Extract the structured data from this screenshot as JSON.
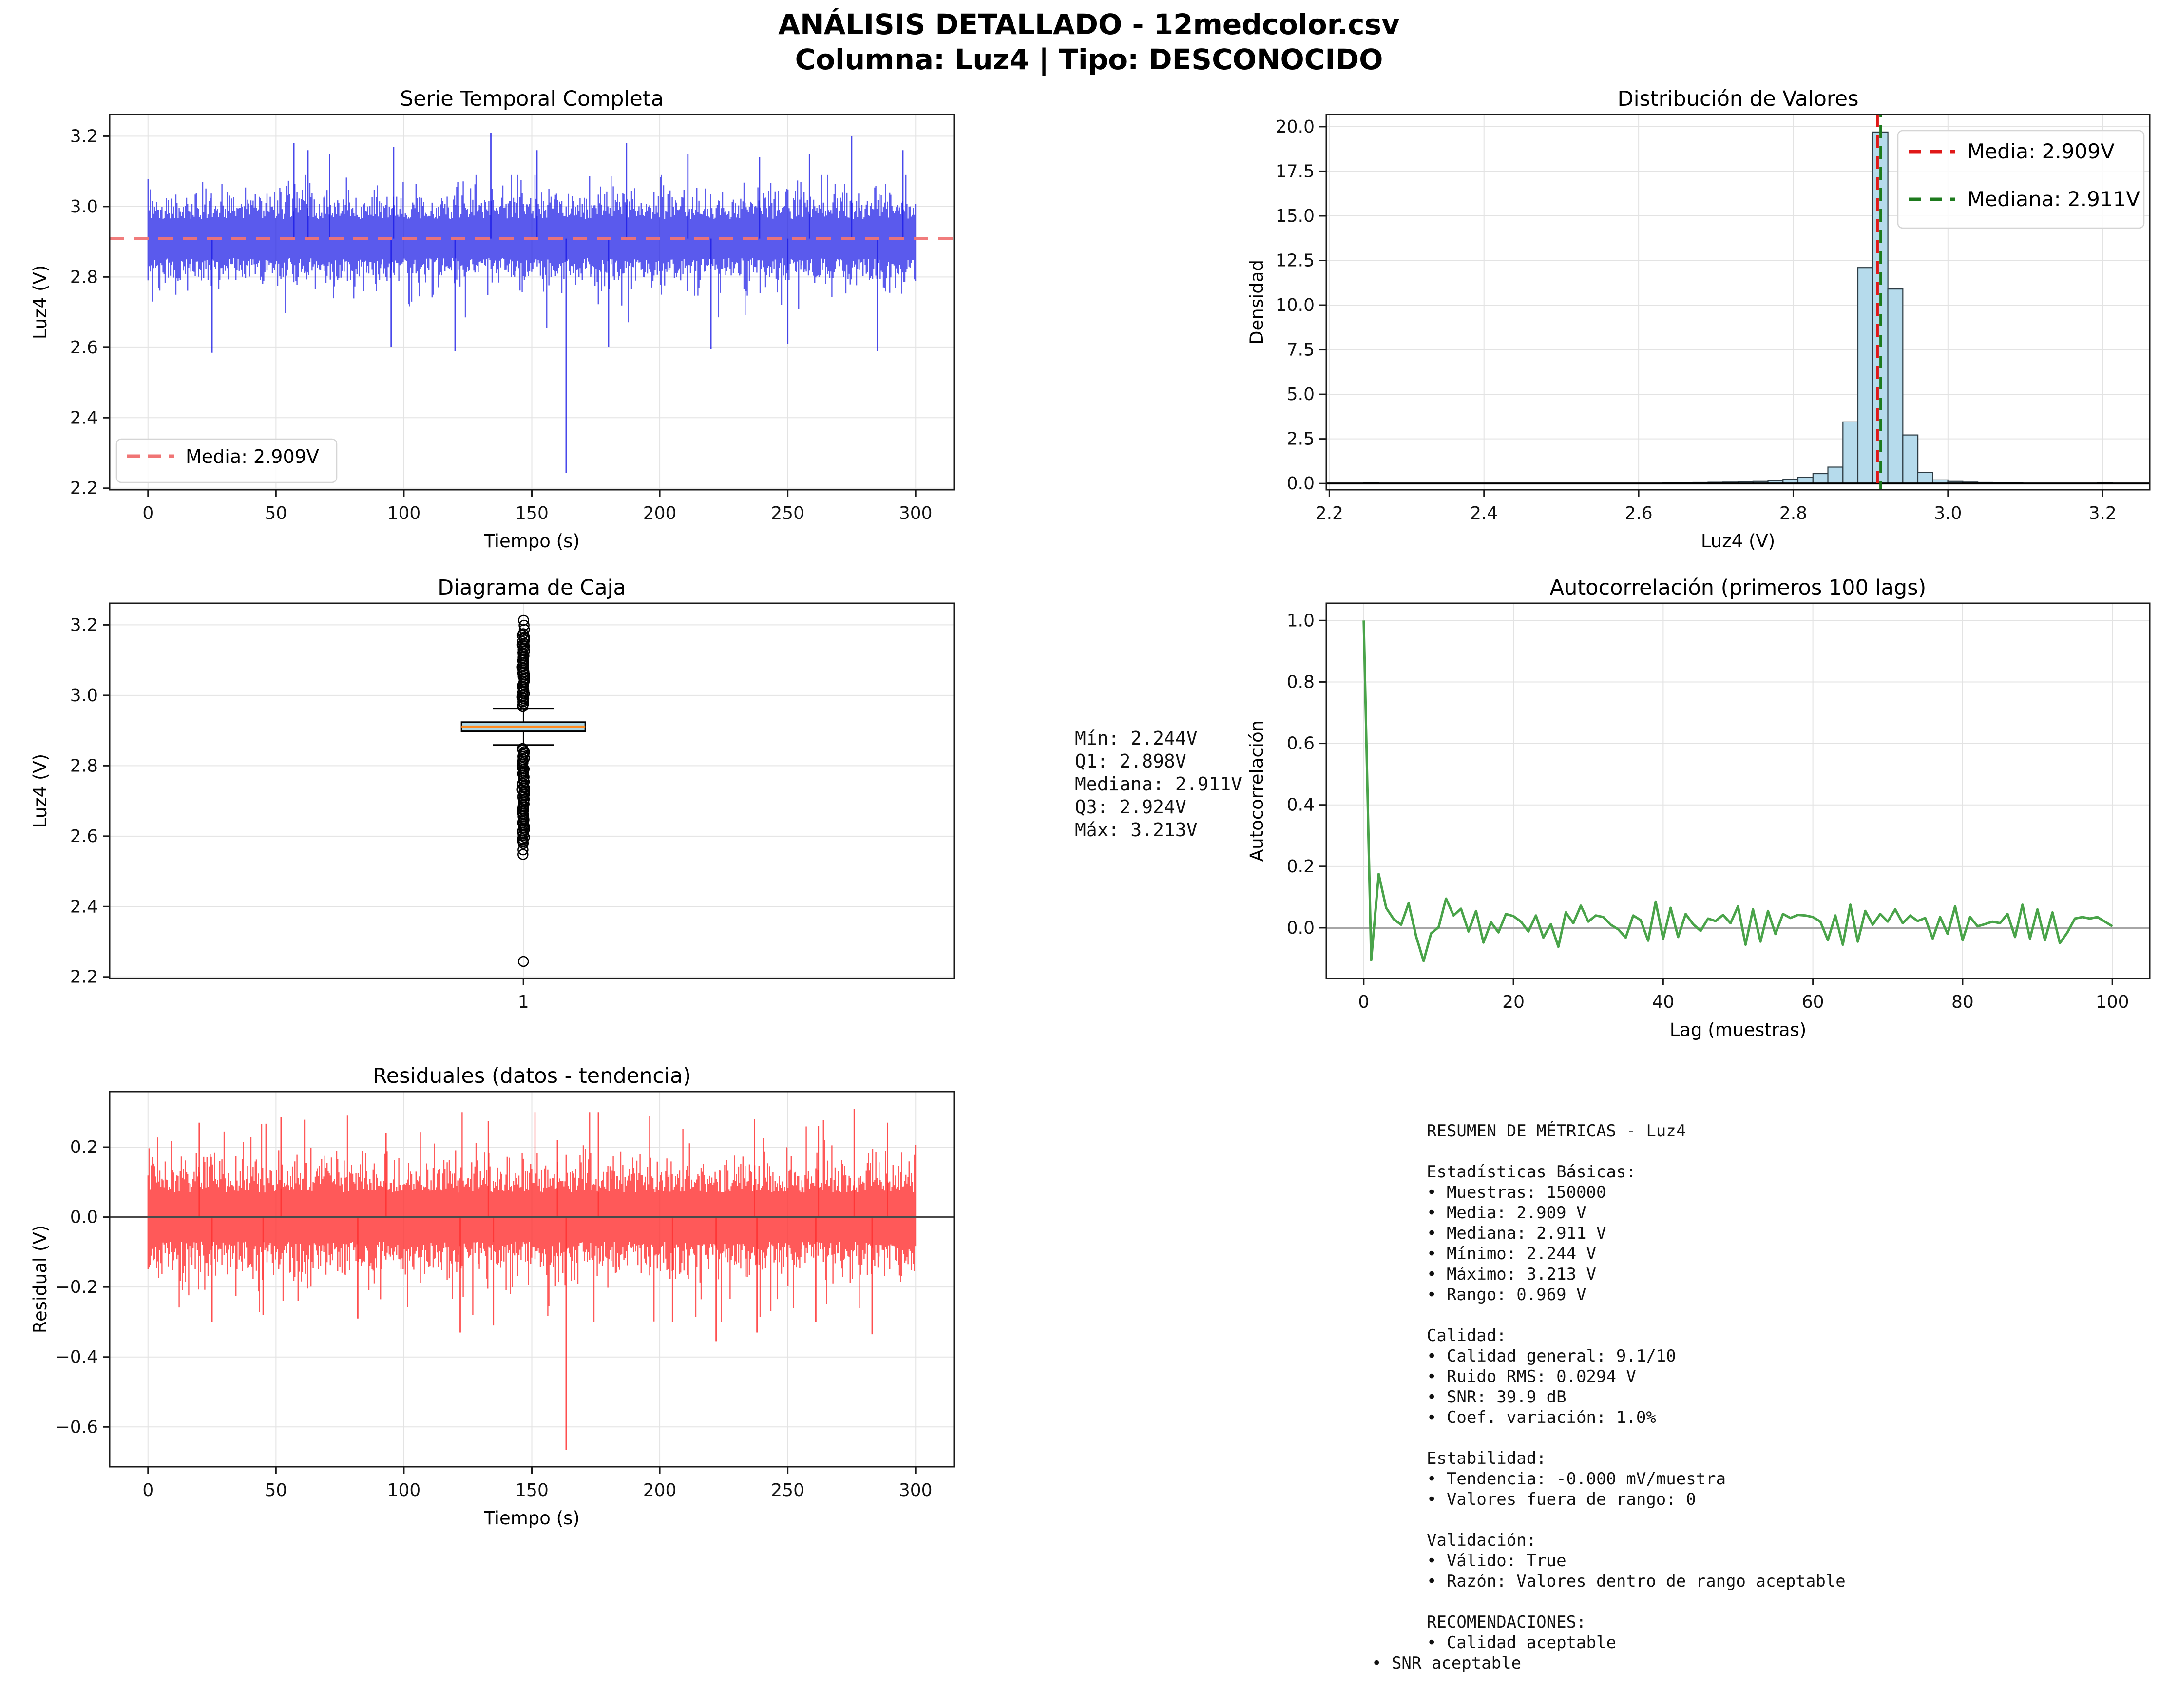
{
  "header": {
    "title_line1": "ANÁLISIS DETALLADO - 12medcolor.csv",
    "title_line2": "Columna: Luz4 | Tipo: DESCONOCIDO"
  },
  "colors": {
    "series_blue": "#1a1ae6",
    "mean_dash_pink": "#f07575",
    "hist_fill": "#b6dbec",
    "hist_edge": "#2e3c44",
    "hist_mean_red": "#e01818",
    "hist_median_green": "#1d7a1d",
    "box_fill": "#add8e6",
    "box_edge": "#000000",
    "box_median_orange": "#ff8b20",
    "acf_green": "#49a349",
    "resid_red": "#ff3030",
    "zero_line_dark": "#4a4a4a",
    "zero_line_gray": "#a6a6a6",
    "grid": "#e3e3e3",
    "frame": "#1a1a1a",
    "legend_border": "#d5d5d5"
  },
  "stats_text": {
    "block": "Mín: 2.244V\nQ1: 2.898V\nMediana: 2.911V\nQ3: 2.924V\nMáx: 3.213V"
  },
  "metrics": {
    "block": "RESUMEN DE MÉTRICAS - Luz4\n\nEstadísticas Básicas:\n• Muestras: 150000\n• Media: 2.909 V\n• Mediana: 2.911 V\n• Mínimo: 2.244 V\n• Máximo: 3.213 V\n• Rango: 0.969 V\n\nCalidad:\n• Calidad general: 9.1/10\n• Ruido RMS: 0.0294 V\n• SNR: 39.9 dB\n• Coef. variación: 1.0%\n\nEstabilidad:\n• Tendencia: -0.000 mV/muestra\n• Valores fuera de rango: 0\n\nValidación:\n• Válido: True\n• Razón: Valores dentro de rango aceptable\n\nRECOMENDACIONES:\n• Calidad aceptable",
    "last_line": "• SNR aceptable"
  },
  "chart_data": [
    {
      "id": "timeseries",
      "type": "line",
      "title": "Serie Temporal Completa",
      "xlabel": "Tiempo (s)",
      "ylabel": "Luz4 (V)",
      "xlim": [
        -15,
        315
      ],
      "ylim": [
        2.1955,
        3.2615
      ],
      "xticks": {
        "values": [
          0,
          50,
          100,
          150,
          200,
          250,
          300
        ],
        "labels": [
          "0",
          "50",
          "100",
          "150",
          "200",
          "250",
          "300"
        ]
      },
      "yticks": {
        "values": [
          2.2,
          2.4,
          2.6,
          2.8,
          3.0,
          3.2
        ],
        "labels": [
          "2.2",
          "2.4",
          "2.6",
          "2.8",
          "3.0",
          "3.2"
        ]
      },
      "legend": [
        {
          "label": "Media: 2.909V",
          "color": "#f07575",
          "dash": true
        }
      ],
      "mean": 2.909,
      "duration_s": 300,
      "samples": 150000,
      "noise": {
        "seed": 42,
        "amp_base": 0.055,
        "amp_var": 0.045,
        "tail_prob": 0.035,
        "tail_base": 0.05,
        "tail_var": 0.06,
        "clamp_lo": 2.6,
        "clamp_hi": 3.09
      },
      "spikes_up": [
        [
          57,
          3.18
        ],
        [
          62.5,
          3.16
        ],
        [
          71,
          3.15
        ],
        [
          96,
          3.17
        ],
        [
          134,
          3.21
        ],
        [
          152,
          3.16
        ],
        [
          187,
          3.18
        ],
        [
          211,
          3.15
        ],
        [
          239,
          3.14
        ],
        [
          258.5,
          3.15
        ],
        [
          275,
          3.2
        ],
        [
          295,
          3.16
        ]
      ],
      "spikes_down": [
        [
          25,
          2.585
        ],
        [
          95,
          2.6
        ],
        [
          120,
          2.59
        ],
        [
          163.4,
          2.244
        ],
        [
          180,
          2.6
        ],
        [
          220,
          2.595
        ],
        [
          250,
          2.61
        ],
        [
          285,
          2.59
        ]
      ]
    },
    {
      "id": "histogram",
      "type": "bar",
      "title": "Distribución de Valores",
      "xlabel": "Luz4 (V)",
      "ylabel": "Densidad",
      "xlim": [
        2.196,
        3.261
      ],
      "ylim": [
        -0.35,
        20.68
      ],
      "xticks": {
        "values": [
          2.2,
          2.4,
          2.6,
          2.8,
          3.0,
          3.2
        ],
        "labels": [
          "2.2",
          "2.4",
          "2.6",
          "2.8",
          "3.0",
          "3.2"
        ]
      },
      "yticks": {
        "values": [
          0,
          2.5,
          5,
          7.5,
          10,
          12.5,
          15,
          17.5,
          20
        ],
        "labels": [
          "0.0",
          "2.5",
          "5.0",
          "7.5",
          "10.0",
          "12.5",
          "15.0",
          "17.5",
          "20.0"
        ]
      },
      "bin_start": 2.244,
      "bin_width": 0.01938,
      "densities": [
        0.03,
        0,
        0,
        0,
        0,
        0,
        0,
        0,
        0,
        0,
        0,
        0,
        0,
        0,
        0,
        0,
        0,
        0,
        0,
        0,
        0.04,
        0.05,
        0.06,
        0.07,
        0.08,
        0.1,
        0.12,
        0.16,
        0.22,
        0.35,
        0.55,
        0.92,
        3.45,
        12.1,
        19.7,
        10.9,
        2.72,
        0.62,
        0.2,
        0.12,
        0.08,
        0.06,
        0.05,
        0.04,
        0,
        0,
        0,
        0,
        0,
        0.03
      ],
      "mean_line": 2.909,
      "median_line": 2.911,
      "legend": [
        {
          "label": "Media: 2.909V",
          "color": "#e01818",
          "dash": true
        },
        {
          "label": "Mediana: 2.911V",
          "color": "#1d7a1d",
          "dash": true
        }
      ]
    },
    {
      "id": "boxplot",
      "type": "box",
      "title": "Diagrama de Caja",
      "ylabel": "Luz4 (V)",
      "xlim": [
        0,
        1
      ],
      "ylim": [
        2.1955,
        3.2615
      ],
      "xticks": {
        "values": [
          0.49
        ],
        "labels": [
          "1"
        ]
      },
      "yticks": {
        "values": [
          2.2,
          2.4,
          2.6,
          2.8,
          3.0,
          3.2
        ],
        "labels": [
          "2.2",
          "2.4",
          "2.6",
          "2.8",
          "3.0",
          "3.2"
        ]
      },
      "stats": {
        "min": 2.244,
        "q1": 2.898,
        "median": 2.911,
        "q3": 2.924,
        "max": 3.213,
        "whisker_low": 2.859,
        "whisker_high": 2.963
      },
      "outliers_high_dense": [
        2.968,
        3.178
      ],
      "outliers_high_single": [
        3.187,
        3.199,
        3.213
      ],
      "outliers_low_dense": [
        2.575,
        2.849
      ],
      "outliers_low_single": [
        2.561,
        2.548,
        2.244
      ]
    },
    {
      "id": "autocorrelation",
      "type": "line",
      "title": "Autocorrelación (primeros 100 lags)",
      "xlabel": "Lag (muestras)",
      "ylabel": "Autocorrelación",
      "xlim": [
        -5,
        105
      ],
      "ylim": [
        -0.165,
        1.056
      ],
      "xticks": {
        "values": [
          0,
          20,
          40,
          60,
          80,
          100
        ],
        "labels": [
          "0",
          "20",
          "40",
          "60",
          "80",
          "100"
        ]
      },
      "yticks": {
        "values": [
          0,
          0.2,
          0.4,
          0.6,
          0.8,
          1.0
        ],
        "labels": [
          "0.0",
          "0.2",
          "0.4",
          "0.6",
          "0.8",
          "1.0"
        ]
      },
      "zero_line": 0,
      "values": [
        1.0,
        -0.105,
        0.175,
        0.065,
        0.028,
        0.01,
        0.08,
        -0.028,
        -0.108,
        -0.018,
        0.002,
        0.095,
        0.04,
        0.062,
        -0.012,
        0.055,
        -0.048,
        0.018,
        -0.015,
        0.045,
        0.038,
        0.02,
        -0.012,
        0.04,
        -0.032,
        0.012,
        -0.062,
        0.05,
        0.015,
        0.072,
        0.02,
        0.04,
        0.035,
        0.01,
        -0.005,
        -0.032,
        0.04,
        0.025,
        -0.042,
        0.085,
        -0.035,
        0.065,
        -0.03,
        0.045,
        0.012,
        -0.01,
        0.03,
        0.022,
        0.042,
        0.015,
        0.07,
        -0.055,
        0.06,
        -0.045,
        0.055,
        -0.02,
        0.045,
        0.032,
        0.042,
        0.04,
        0.035,
        0.02,
        -0.04,
        0.04,
        -0.055,
        0.075,
        -0.045,
        0.055,
        0.01,
        0.045,
        0.02,
        0.06,
        0.015,
        0.04,
        0.022,
        0.032,
        -0.035,
        0.035,
        -0.02,
        0.07,
        -0.04,
        0.035,
        0.005,
        0.012,
        0.02,
        0.015,
        0.045,
        -0.03,
        0.075,
        -0.035,
        0.06,
        -0.04,
        0.05,
        -0.05,
        -0.015,
        0.03,
        0.035,
        0.03,
        0.035,
        0.02,
        0.005
      ]
    },
    {
      "id": "residuals",
      "type": "line",
      "title": "Residuales (datos - tendencia)",
      "xlabel": "Tiempo (s)",
      "ylabel": "Residual (V)",
      "xlim": [
        -15,
        315
      ],
      "ylim": [
        -0.7138,
        0.3588
      ],
      "xticks": {
        "values": [
          0,
          50,
          100,
          150,
          200,
          250,
          300
        ],
        "labels": [
          "0",
          "50",
          "100",
          "150",
          "200",
          "250",
          "300"
        ]
      },
      "yticks": {
        "values": [
          -0.6,
          -0.4,
          -0.2,
          0,
          0.2
        ],
        "labels": [
          "−0.6",
          "−0.4",
          "−0.2",
          "0.0",
          "0.2"
        ]
      },
      "zero_line": 0,
      "mean": 0,
      "duration_s": 300,
      "noise": {
        "seed": 7,
        "amp_base": 0.07,
        "amp_var": 0.055,
        "tail_prob": 0.04,
        "tail_base": 0.06,
        "tail_var": 0.07,
        "clamp_lo": -0.3,
        "clamp_hi": 0.3
      },
      "spikes_up": [
        [
          20,
          0.27
        ],
        [
          52,
          0.285
        ],
        [
          93,
          0.24
        ],
        [
          133,
          0.275
        ],
        [
          160,
          0.22
        ],
        [
          176,
          0.3
        ],
        [
          237,
          0.28
        ],
        [
          262,
          0.26
        ],
        [
          276,
          0.31
        ],
        [
          289,
          0.27
        ]
      ],
      "spikes_down": [
        [
          25,
          -0.3
        ],
        [
          45,
          -0.28
        ],
        [
          82,
          -0.29
        ],
        [
          122,
          -0.33
        ],
        [
          135,
          -0.31
        ],
        [
          163.4,
          -0.665
        ],
        [
          205,
          -0.3
        ],
        [
          222,
          -0.355
        ],
        [
          238,
          -0.33
        ],
        [
          261,
          -0.3
        ],
        [
          283,
          -0.335
        ]
      ]
    }
  ]
}
